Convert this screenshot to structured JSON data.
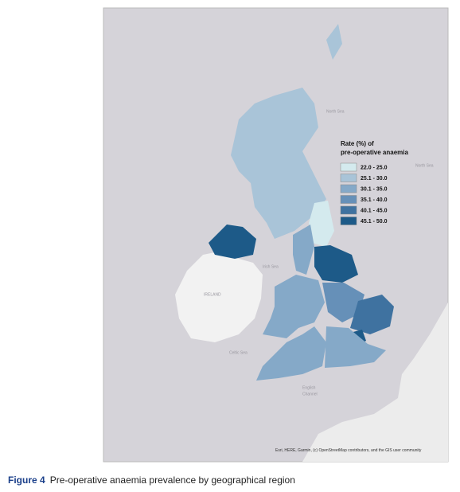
{
  "legend": {
    "title_lines": [
      "Rate (%) of",
      "pre-operative anaemia"
    ],
    "items": [
      {
        "label": "22.0 - 25.0",
        "color": "#d4eaee"
      },
      {
        "label": "25.1 - 30.0",
        "color": "#a9c4d8"
      },
      {
        "label": "30.1 - 35.0",
        "color": "#85a9c8"
      },
      {
        "label": "35.1 - 40.0",
        "color": "#6690b8"
      },
      {
        "label": "40.1 - 45.0",
        "color": "#3f72a0"
      },
      {
        "label": "45.1 - 50.0",
        "color": "#1d5a88"
      }
    ]
  },
  "map_labels": {
    "north_sea_1": "North Sea",
    "north_sea_2": "North Sea",
    "irish_sea": "Irish Sea",
    "ireland": "IRELAND",
    "celtic_sea": "Celtic Sea",
    "english_channel_1": "English",
    "english_channel_2": "Channel"
  },
  "attribution": "Esri, HERE, Garmin, (c) OpenStreetMap contributors, and the GIS user community",
  "caption": {
    "label": "Figure 4",
    "text": "Pre-operative anaemia prevalence by geographical region"
  }
}
